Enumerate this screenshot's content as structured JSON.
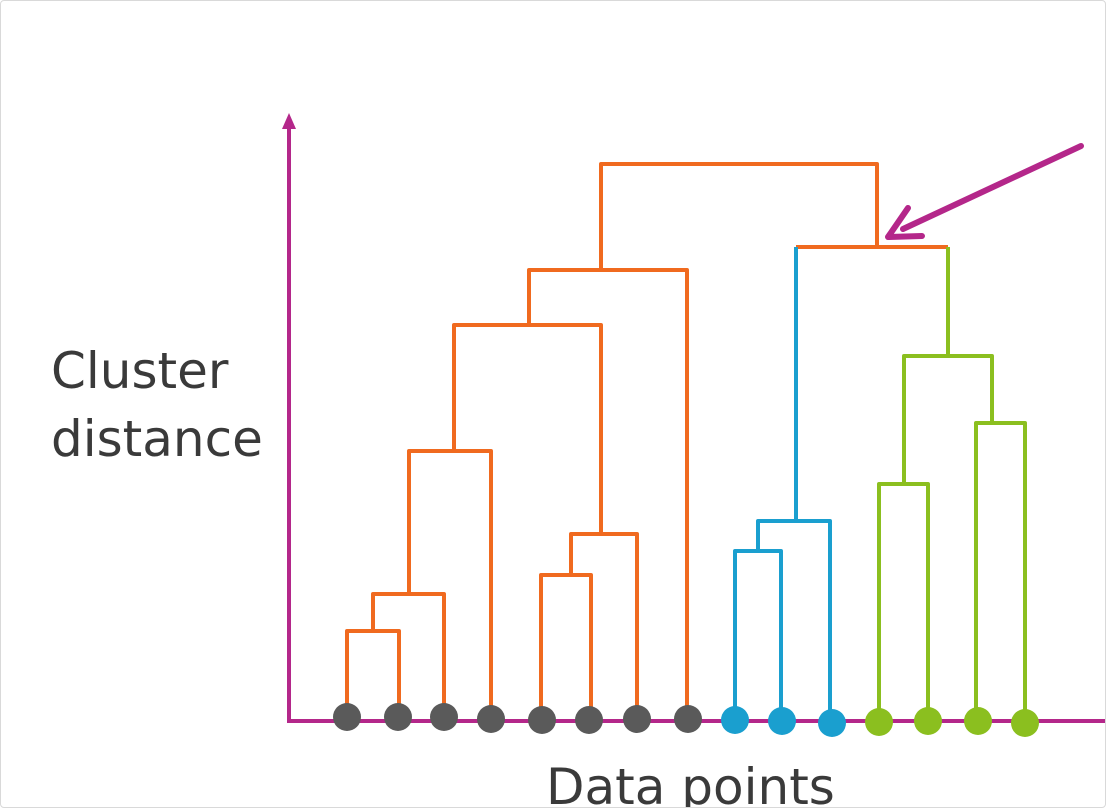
{
  "diagram": {
    "type": "dendrogram",
    "y_axis_label_line1": "Cluster",
    "y_axis_label_line2": "distance",
    "x_axis_label": "Data points",
    "colors": {
      "axis": "#b4278a",
      "arrow": "#b4278a",
      "orange_branches": "#f06a1f",
      "blue_branches": "#1a9fcf",
      "green_branches": "#8bbf1f",
      "gray_points": "#5a5a5a",
      "blue_points": "#1a9fcf",
      "green_points": "#8bbf1f"
    },
    "data_point_groups": [
      {
        "name": "gray",
        "count": 8
      },
      {
        "name": "blue",
        "count": 3
      },
      {
        "name": "green",
        "count": 4
      }
    ]
  }
}
